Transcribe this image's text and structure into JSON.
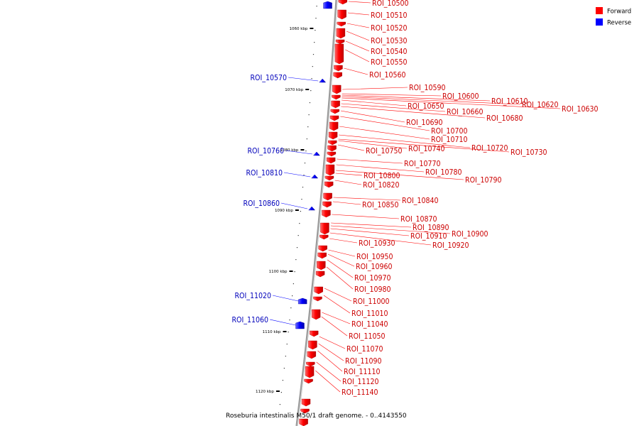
{
  "caption": "Roseburia intestinalis M50/1 draft genome. - 0..4143550",
  "legend": [
    {
      "label": "Forward",
      "color": "#ff0000"
    },
    {
      "label": "Reverse",
      "color": "#0000ff"
    }
  ],
  "ticks": [
    "1060 kbp",
    "1070 kbp",
    "1080 kbp",
    "1090 kbp",
    "1100 kbp",
    "1110 kbp",
    "1120 kbp"
  ],
  "forward_labels": [
    "ROI_10500",
    "ROI_10510",
    "ROI_10520",
    "ROI_10530",
    "ROI_10540",
    "ROI_10550",
    "ROI_10560",
    "ROI_10590",
    "ROI_10600",
    "ROI_10610",
    "ROI_10620",
    "ROI_10630",
    "ROI_10650",
    "ROI_10660",
    "ROI_10680",
    "ROI_10690",
    "ROI_10700",
    "ROI_10710",
    "ROI_10720",
    "ROI_10730",
    "ROI_10740",
    "ROI_10750",
    "ROI_10770",
    "ROI_10780",
    "ROI_10790",
    "ROI_10800",
    "ROI_10820",
    "ROI_10840",
    "ROI_10850",
    "ROI_10870",
    "ROI_10890",
    "ROI_10900",
    "ROI_10910",
    "ROI_10920",
    "ROI_10930",
    "ROI_10950",
    "ROI_10960",
    "ROI_10970",
    "ROI_10980",
    "ROI_11000",
    "ROI_11010",
    "ROI_11040",
    "ROI_11050",
    "ROI_11070",
    "ROI_11090",
    "ROI_11110",
    "ROI_11120",
    "ROI_11140"
  ],
  "reverse_labels": [
    "ROI_10570",
    "ROI_10760",
    "ROI_10810",
    "ROI_10860",
    "ROI_11020",
    "ROI_11060"
  ]
}
